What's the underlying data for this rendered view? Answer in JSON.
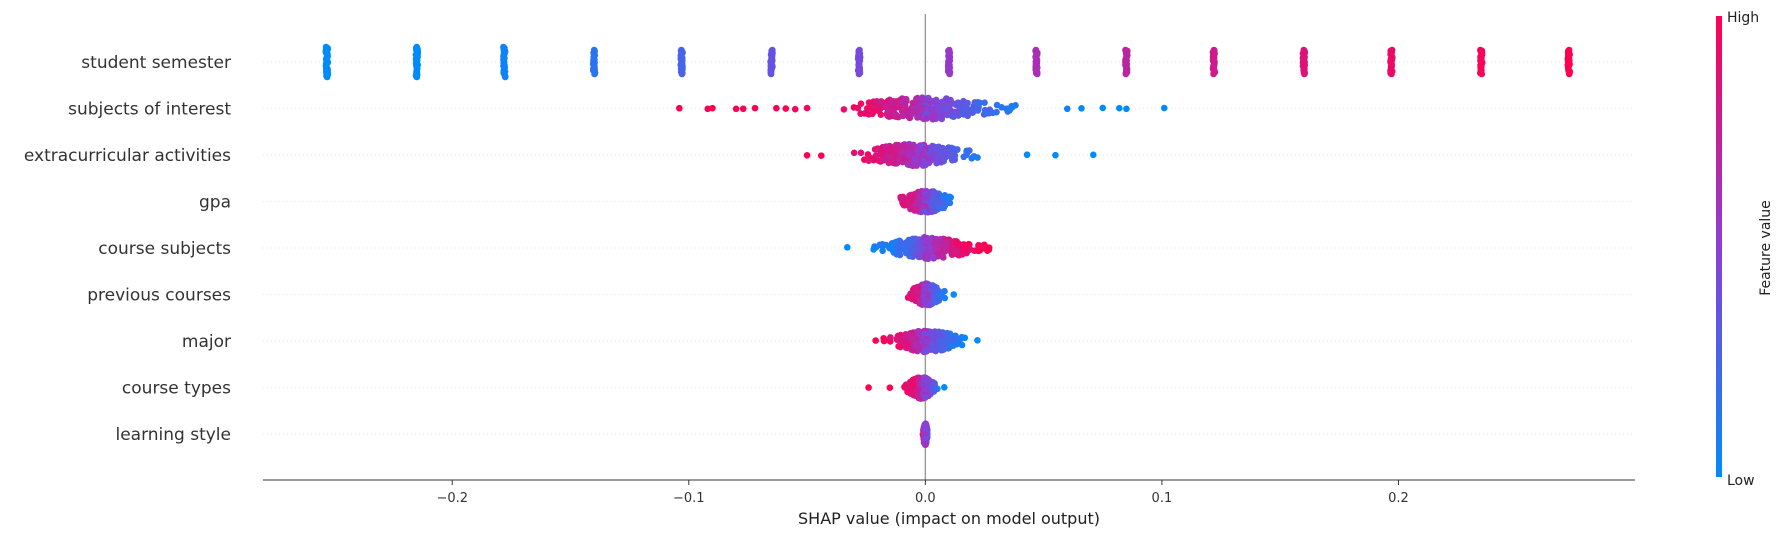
{
  "chart_data": {
    "type": "scatter",
    "subtype": "shap-beeswarm",
    "xlabel": "SHAP value (impact on model output)",
    "xlim": [
      -0.28,
      0.3
    ],
    "xticks": [
      -0.2,
      -0.1,
      0.0,
      0.1,
      0.2
    ],
    "xtick_labels": [
      "−0.2",
      "−0.1",
      "0.0",
      "0.1",
      "0.2"
    ],
    "colorbar": {
      "label": "Feature value",
      "high_label": "High",
      "low_label": "Low",
      "low_color": "#008bfb",
      "high_color": "#ff0051"
    },
    "features": [
      {
        "name": "student semester",
        "clusters": [
          {
            "x": -0.253,
            "v": 0.0,
            "spread": 0.0018
          },
          {
            "x": -0.215,
            "v": 0.0,
            "spread": 0.0018
          },
          {
            "x": -0.178,
            "v": 0.05,
            "spread": 0.0018
          },
          {
            "x": -0.14,
            "v": 0.15,
            "spread": 0.0015
          },
          {
            "x": -0.103,
            "v": 0.25,
            "spread": 0.0015
          },
          {
            "x": -0.065,
            "v": 0.35,
            "spread": 0.0015
          },
          {
            "x": -0.028,
            "v": 0.42,
            "spread": 0.0015
          },
          {
            "x": 0.01,
            "v": 0.55,
            "spread": 0.0015
          },
          {
            "x": 0.047,
            "v": 0.62,
            "spread": 0.0015
          },
          {
            "x": 0.085,
            "v": 0.7,
            "spread": 0.0015
          },
          {
            "x": 0.122,
            "v": 0.78,
            "spread": 0.0015
          },
          {
            "x": 0.16,
            "v": 0.85,
            "spread": 0.0015
          },
          {
            "x": 0.197,
            "v": 0.92,
            "spread": 0.0015
          },
          {
            "x": 0.235,
            "v": 0.97,
            "spread": 0.0015
          },
          {
            "x": 0.272,
            "v": 1.0,
            "spread": 0.0015
          }
        ]
      },
      {
        "name": "subjects of interest",
        "bulk_points": [
          {
            "x": -0.04,
            "v": 0.92
          },
          {
            "x": -0.03,
            "v": 0.9
          },
          {
            "x": -0.02,
            "v": 0.85
          },
          {
            "x": -0.01,
            "v": 0.75
          },
          {
            "x": 0.0,
            "v": 0.55
          },
          {
            "x": 0.01,
            "v": 0.4
          },
          {
            "x": 0.02,
            "v": 0.3
          },
          {
            "x": 0.03,
            "v": 0.2
          },
          {
            "x": 0.04,
            "v": 0.1
          }
        ],
        "outliers": [
          {
            "x": -0.104,
            "v": 1.0
          },
          {
            "x": -0.092,
            "v": 1.0
          },
          {
            "x": -0.09,
            "v": 1.0
          },
          {
            "x": -0.08,
            "v": 1.0
          },
          {
            "x": -0.077,
            "v": 1.0
          },
          {
            "x": -0.072,
            "v": 1.0
          },
          {
            "x": -0.063,
            "v": 1.0
          },
          {
            "x": -0.059,
            "v": 1.0
          },
          {
            "x": -0.055,
            "v": 0.95
          },
          {
            "x": -0.05,
            "v": 0.95
          },
          {
            "x": 0.06,
            "v": 0.05
          },
          {
            "x": 0.066,
            "v": 0.0
          },
          {
            "x": 0.075,
            "v": 0.0
          },
          {
            "x": 0.082,
            "v": 0.0
          },
          {
            "x": 0.085,
            "v": 0.0
          },
          {
            "x": 0.101,
            "v": 0.0
          }
        ]
      },
      {
        "name": "extracurricular activities",
        "bulk_points": [
          {
            "x": -0.035,
            "v": 0.95
          },
          {
            "x": -0.025,
            "v": 0.9
          },
          {
            "x": -0.015,
            "v": 0.8
          },
          {
            "x": -0.005,
            "v": 0.6
          },
          {
            "x": 0.005,
            "v": 0.4
          },
          {
            "x": 0.015,
            "v": 0.2
          },
          {
            "x": 0.025,
            "v": 0.05
          }
        ],
        "outliers": [
          {
            "x": -0.05,
            "v": 1.0
          },
          {
            "x": -0.044,
            "v": 1.0
          },
          {
            "x": 0.043,
            "v": 0.0
          },
          {
            "x": 0.055,
            "v": 0.0
          },
          {
            "x": 0.071,
            "v": 0.0
          }
        ]
      },
      {
        "name": "gpa",
        "bulk_points": [
          {
            "x": -0.014,
            "v": 0.9
          },
          {
            "x": -0.008,
            "v": 0.85
          },
          {
            "x": -0.003,
            "v": 0.7
          },
          {
            "x": 0.0,
            "v": 0.5
          },
          {
            "x": 0.004,
            "v": 0.3
          },
          {
            "x": 0.009,
            "v": 0.1
          },
          {
            "x": 0.013,
            "v": 0.05
          }
        ],
        "outliers": []
      },
      {
        "name": "course subjects",
        "bulk_points": [
          {
            "x": -0.025,
            "v": 0.0
          },
          {
            "x": -0.015,
            "v": 0.1
          },
          {
            "x": -0.005,
            "v": 0.3
          },
          {
            "x": 0.002,
            "v": 0.55
          },
          {
            "x": 0.01,
            "v": 0.8
          },
          {
            "x": 0.018,
            "v": 0.95
          },
          {
            "x": 0.025,
            "v": 1.0
          }
        ],
        "outliers": [
          {
            "x": -0.033,
            "v": 0.0
          },
          {
            "x": 0.027,
            "v": 1.0
          }
        ]
      },
      {
        "name": "previous courses",
        "bulk_points": [
          {
            "x": -0.008,
            "v": 0.95
          },
          {
            "x": -0.003,
            "v": 0.8
          },
          {
            "x": 0.0,
            "v": 0.5
          },
          {
            "x": 0.004,
            "v": 0.25
          },
          {
            "x": 0.009,
            "v": 0.05
          }
        ],
        "outliers": [
          {
            "x": 0.012,
            "v": 0.0
          }
        ]
      },
      {
        "name": "major",
        "bulk_points": [
          {
            "x": -0.018,
            "v": 0.95
          },
          {
            "x": -0.01,
            "v": 0.85
          },
          {
            "x": -0.004,
            "v": 0.7
          },
          {
            "x": 0.0,
            "v": 0.5
          },
          {
            "x": 0.006,
            "v": 0.3
          },
          {
            "x": 0.013,
            "v": 0.1
          },
          {
            "x": 0.019,
            "v": 0.02
          }
        ],
        "outliers": [
          {
            "x": -0.021,
            "v": 1.0
          },
          {
            "x": 0.022,
            "v": 0.0
          }
        ]
      },
      {
        "name": "course types",
        "bulk_points": [
          {
            "x": -0.01,
            "v": 0.95
          },
          {
            "x": -0.005,
            "v": 0.85
          },
          {
            "x": -0.001,
            "v": 0.65
          },
          {
            "x": 0.002,
            "v": 0.4
          },
          {
            "x": 0.005,
            "v": 0.15
          }
        ],
        "outliers": [
          {
            "x": -0.024,
            "v": 1.0
          },
          {
            "x": -0.015,
            "v": 1.0
          },
          {
            "x": 0.008,
            "v": 0.0
          }
        ]
      },
      {
        "name": "learning style",
        "bulk_points": [
          {
            "x": -0.001,
            "v": 0.9
          },
          {
            "x": 0.0,
            "v": 0.5
          },
          {
            "x": 0.001,
            "v": 0.2
          }
        ],
        "outliers": []
      }
    ]
  }
}
